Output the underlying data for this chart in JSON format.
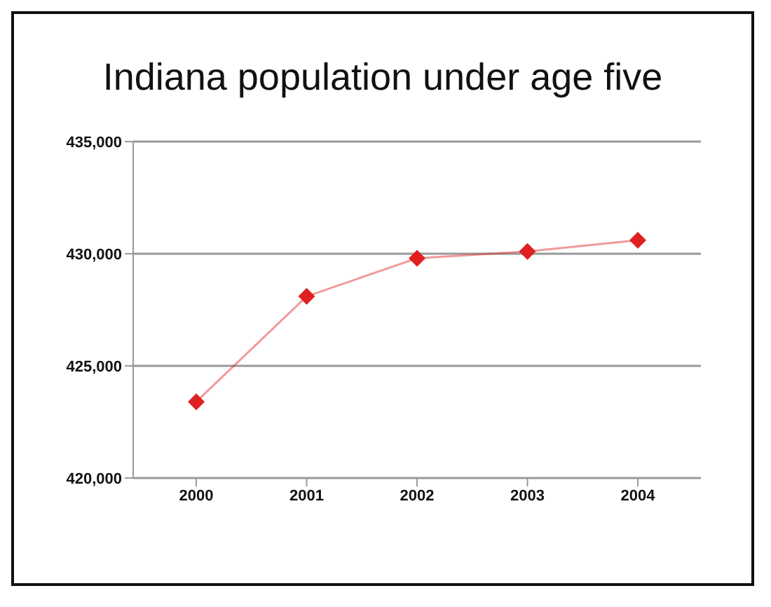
{
  "chart_data": {
    "type": "line",
    "title": "Indiana population under age five",
    "categories": [
      "2000",
      "2001",
      "2002",
      "2003",
      "2004"
    ],
    "series": [
      {
        "color": "#e02020",
        "values": [
          423400,
          428100,
          429800,
          430100,
          430600
        ]
      }
    ],
    "ylim": [
      420000,
      435000
    ],
    "yticks": [
      {
        "value": 420000,
        "label": "420,000"
      },
      {
        "value": 425000,
        "label": "425,000"
      },
      {
        "value": 430000,
        "label": "430,000"
      },
      {
        "value": 435000,
        "label": "435,000"
      }
    ],
    "grid": "y",
    "marker": "diamond",
    "line_style": "solid"
  }
}
